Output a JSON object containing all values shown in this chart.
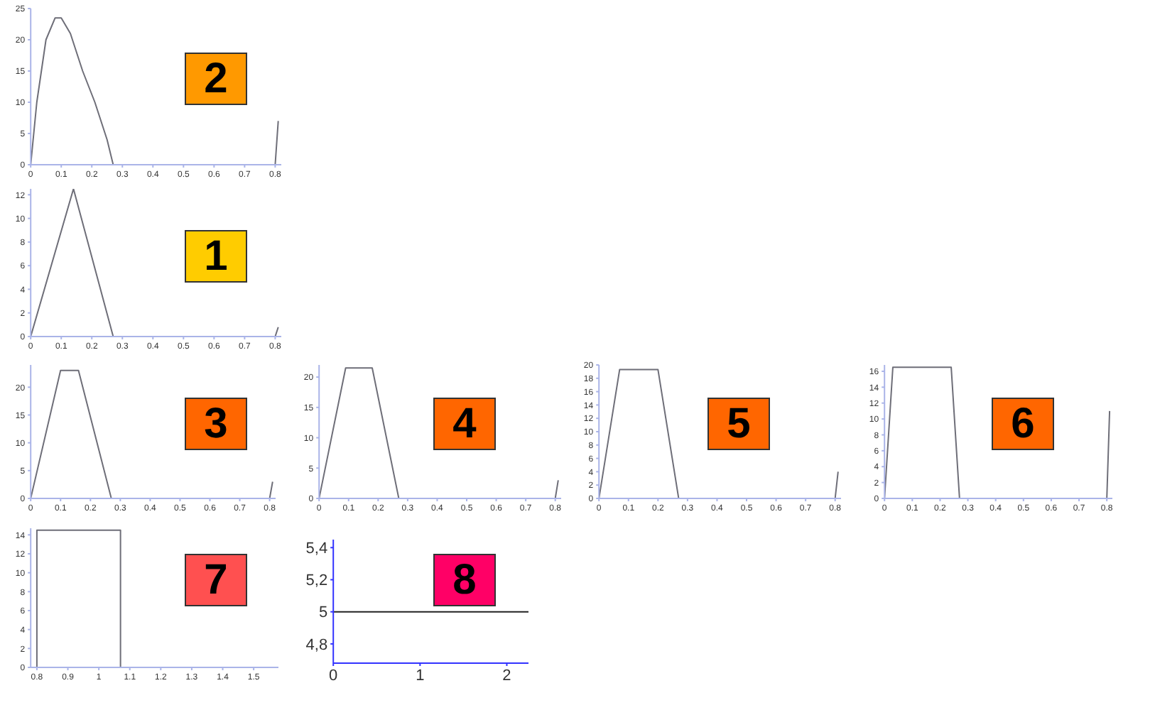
{
  "chart_data": [
    {
      "type": "line",
      "annotations": [
        "2"
      ],
      "x": [
        0,
        0.02,
        0.05,
        0.08,
        0.1,
        0.13,
        0.17,
        0.21,
        0.25,
        0.27,
        0.8,
        0.81
      ],
      "values": [
        0,
        10,
        20,
        23.5,
        23.5,
        21,
        15,
        10,
        4,
        0,
        0,
        7
      ],
      "color": "#6e6e78",
      "xlim": [
        0,
        0.82
      ],
      "ylim": [
        0,
        25
      ],
      "xticks": [
        0,
        0.1,
        0.2,
        0.3,
        0.4,
        0.5,
        0.6,
        0.7,
        0.8
      ],
      "yticks": [
        0,
        5,
        10,
        15,
        20,
        25
      ]
    },
    {
      "type": "line",
      "annotations": [
        "1"
      ],
      "x": [
        0,
        0.14,
        0.27,
        0.8,
        0.81
      ],
      "values": [
        0,
        12.5,
        0,
        0,
        0.8
      ],
      "color": "#6e6e78",
      "xlim": [
        0,
        0.82
      ],
      "ylim": [
        0,
        12.5
      ],
      "xticks": [
        0,
        0.1,
        0.2,
        0.3,
        0.4,
        0.5,
        0.6,
        0.7,
        0.8
      ],
      "yticks": [
        0,
        2,
        4,
        6,
        8,
        10,
        12
      ]
    },
    {
      "type": "line",
      "annotations": [
        "3"
      ],
      "x": [
        0,
        0.1,
        0.16,
        0.27,
        0.8,
        0.81
      ],
      "values": [
        0,
        23,
        23,
        0,
        0,
        3
      ],
      "color": "#6e6e78",
      "xlim": [
        0,
        0.82
      ],
      "ylim": [
        0,
        24
      ],
      "xticks": [
        0,
        0.1,
        0.2,
        0.3,
        0.4,
        0.5,
        0.6,
        0.7,
        0.8
      ],
      "yticks": [
        0,
        5,
        10,
        15,
        20
      ]
    },
    {
      "type": "line",
      "annotations": [
        "4"
      ],
      "x": [
        0,
        0.09,
        0.18,
        0.27,
        0.8,
        0.81
      ],
      "values": [
        0,
        21.5,
        21.5,
        0,
        0,
        3
      ],
      "color": "#6e6e78",
      "xlim": [
        0,
        0.82
      ],
      "ylim": [
        0,
        22
      ],
      "xticks": [
        0,
        0.1,
        0.2,
        0.3,
        0.4,
        0.5,
        0.6,
        0.7,
        0.8
      ],
      "yticks": [
        0,
        5,
        10,
        15,
        20
      ]
    },
    {
      "type": "line",
      "annotations": [
        "5"
      ],
      "x": [
        0,
        0.07,
        0.2,
        0.27,
        0.8,
        0.81
      ],
      "values": [
        0,
        19.3,
        19.3,
        0,
        0,
        4
      ],
      "color": "#6e6e78",
      "xlim": [
        0,
        0.82
      ],
      "ylim": [
        0,
        20
      ],
      "xticks": [
        0,
        0.1,
        0.2,
        0.3,
        0.4,
        0.5,
        0.6,
        0.7,
        0.8
      ],
      "yticks": [
        0,
        2,
        4,
        6,
        8,
        10,
        12,
        14,
        16,
        18,
        20
      ]
    },
    {
      "type": "line",
      "annotations": [
        "6"
      ],
      "x": [
        0,
        0.03,
        0.24,
        0.27,
        0.8,
        0.81
      ],
      "values": [
        0,
        16.5,
        16.5,
        0,
        0,
        11
      ],
      "color": "#6e6e78",
      "xlim": [
        0,
        0.82
      ],
      "ylim": [
        0,
        16.8
      ],
      "xticks": [
        0,
        0.1,
        0.2,
        0.3,
        0.4,
        0.5,
        0.6,
        0.7,
        0.8
      ],
      "yticks": [
        0,
        2,
        4,
        6,
        8,
        10,
        12,
        14,
        16
      ]
    },
    {
      "type": "line",
      "annotations": [
        "7"
      ],
      "x": [
        0.8,
        0.8,
        1.07,
        1.07,
        1.57
      ],
      "values": [
        0,
        14.5,
        14.5,
        0,
        0
      ],
      "color": "#6e6e78",
      "xlim": [
        0.78,
        1.58
      ],
      "ylim": [
        0,
        14.7
      ],
      "xticks": [
        0.8,
        0.9,
        1,
        1.1,
        1.2,
        1.3,
        1.4,
        1.5
      ],
      "yticks": [
        0,
        2,
        4,
        6,
        8,
        10,
        12,
        14
      ]
    },
    {
      "type": "line",
      "annotations": [
        "8"
      ],
      "x": [
        0,
        2.25
      ],
      "values": [
        5,
        5
      ],
      "color": "#222222",
      "xlim": [
        0,
        2.25
      ],
      "ylim": [
        4.68,
        5.45
      ],
      "xticks": [
        0,
        1,
        2
      ],
      "yticks": [
        {
          "value": 4.8,
          "label": "4,8"
        },
        {
          "value": 5,
          "label": "5"
        },
        {
          "value": 5.2,
          "label": "5,2"
        },
        {
          "value": 5.4,
          "label": "5,4"
        }
      ]
    }
  ]
}
